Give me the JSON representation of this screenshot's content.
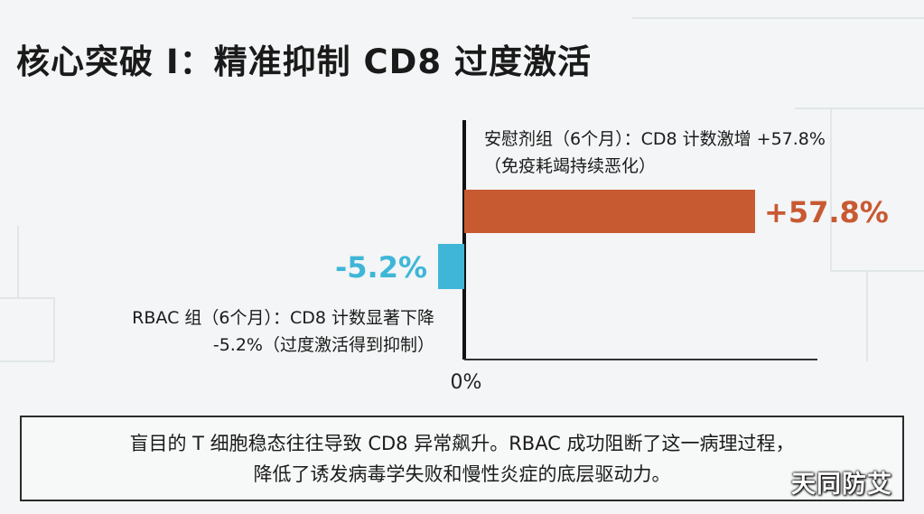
{
  "title": "核心突破 I：精准抑制 CD8 过度激活",
  "chart_data": {
    "type": "bar",
    "orientation": "horizontal",
    "zero_label": "0%",
    "xlim": [
      -10,
      60
    ],
    "series": [
      {
        "value": 57.8,
        "value_label": "+57.8%",
        "color": "#c85a32",
        "annotation": [
          "安慰剂组（6个月）：CD8 计数激增 +57.8%",
          "（免疫耗竭持续恶化）"
        ]
      },
      {
        "value": -5.2,
        "value_label": "-5.2%",
        "color": "#3fb6d8",
        "annotation": [
          "RBAC 组（6个月）：CD8 计数显著下降",
          "-5.2%（过度激活得到抑制）"
        ]
      }
    ],
    "grid": false
  },
  "caption": {
    "line1": "盲目的 T 细胞稳态往往导致 CD8 异常飙升。RBAC 成功阻断了这一病理过程，",
    "line2": "降低了诱发病毒学失败和慢性炎症的底层驱动力。"
  },
  "watermark": "天同防艾"
}
